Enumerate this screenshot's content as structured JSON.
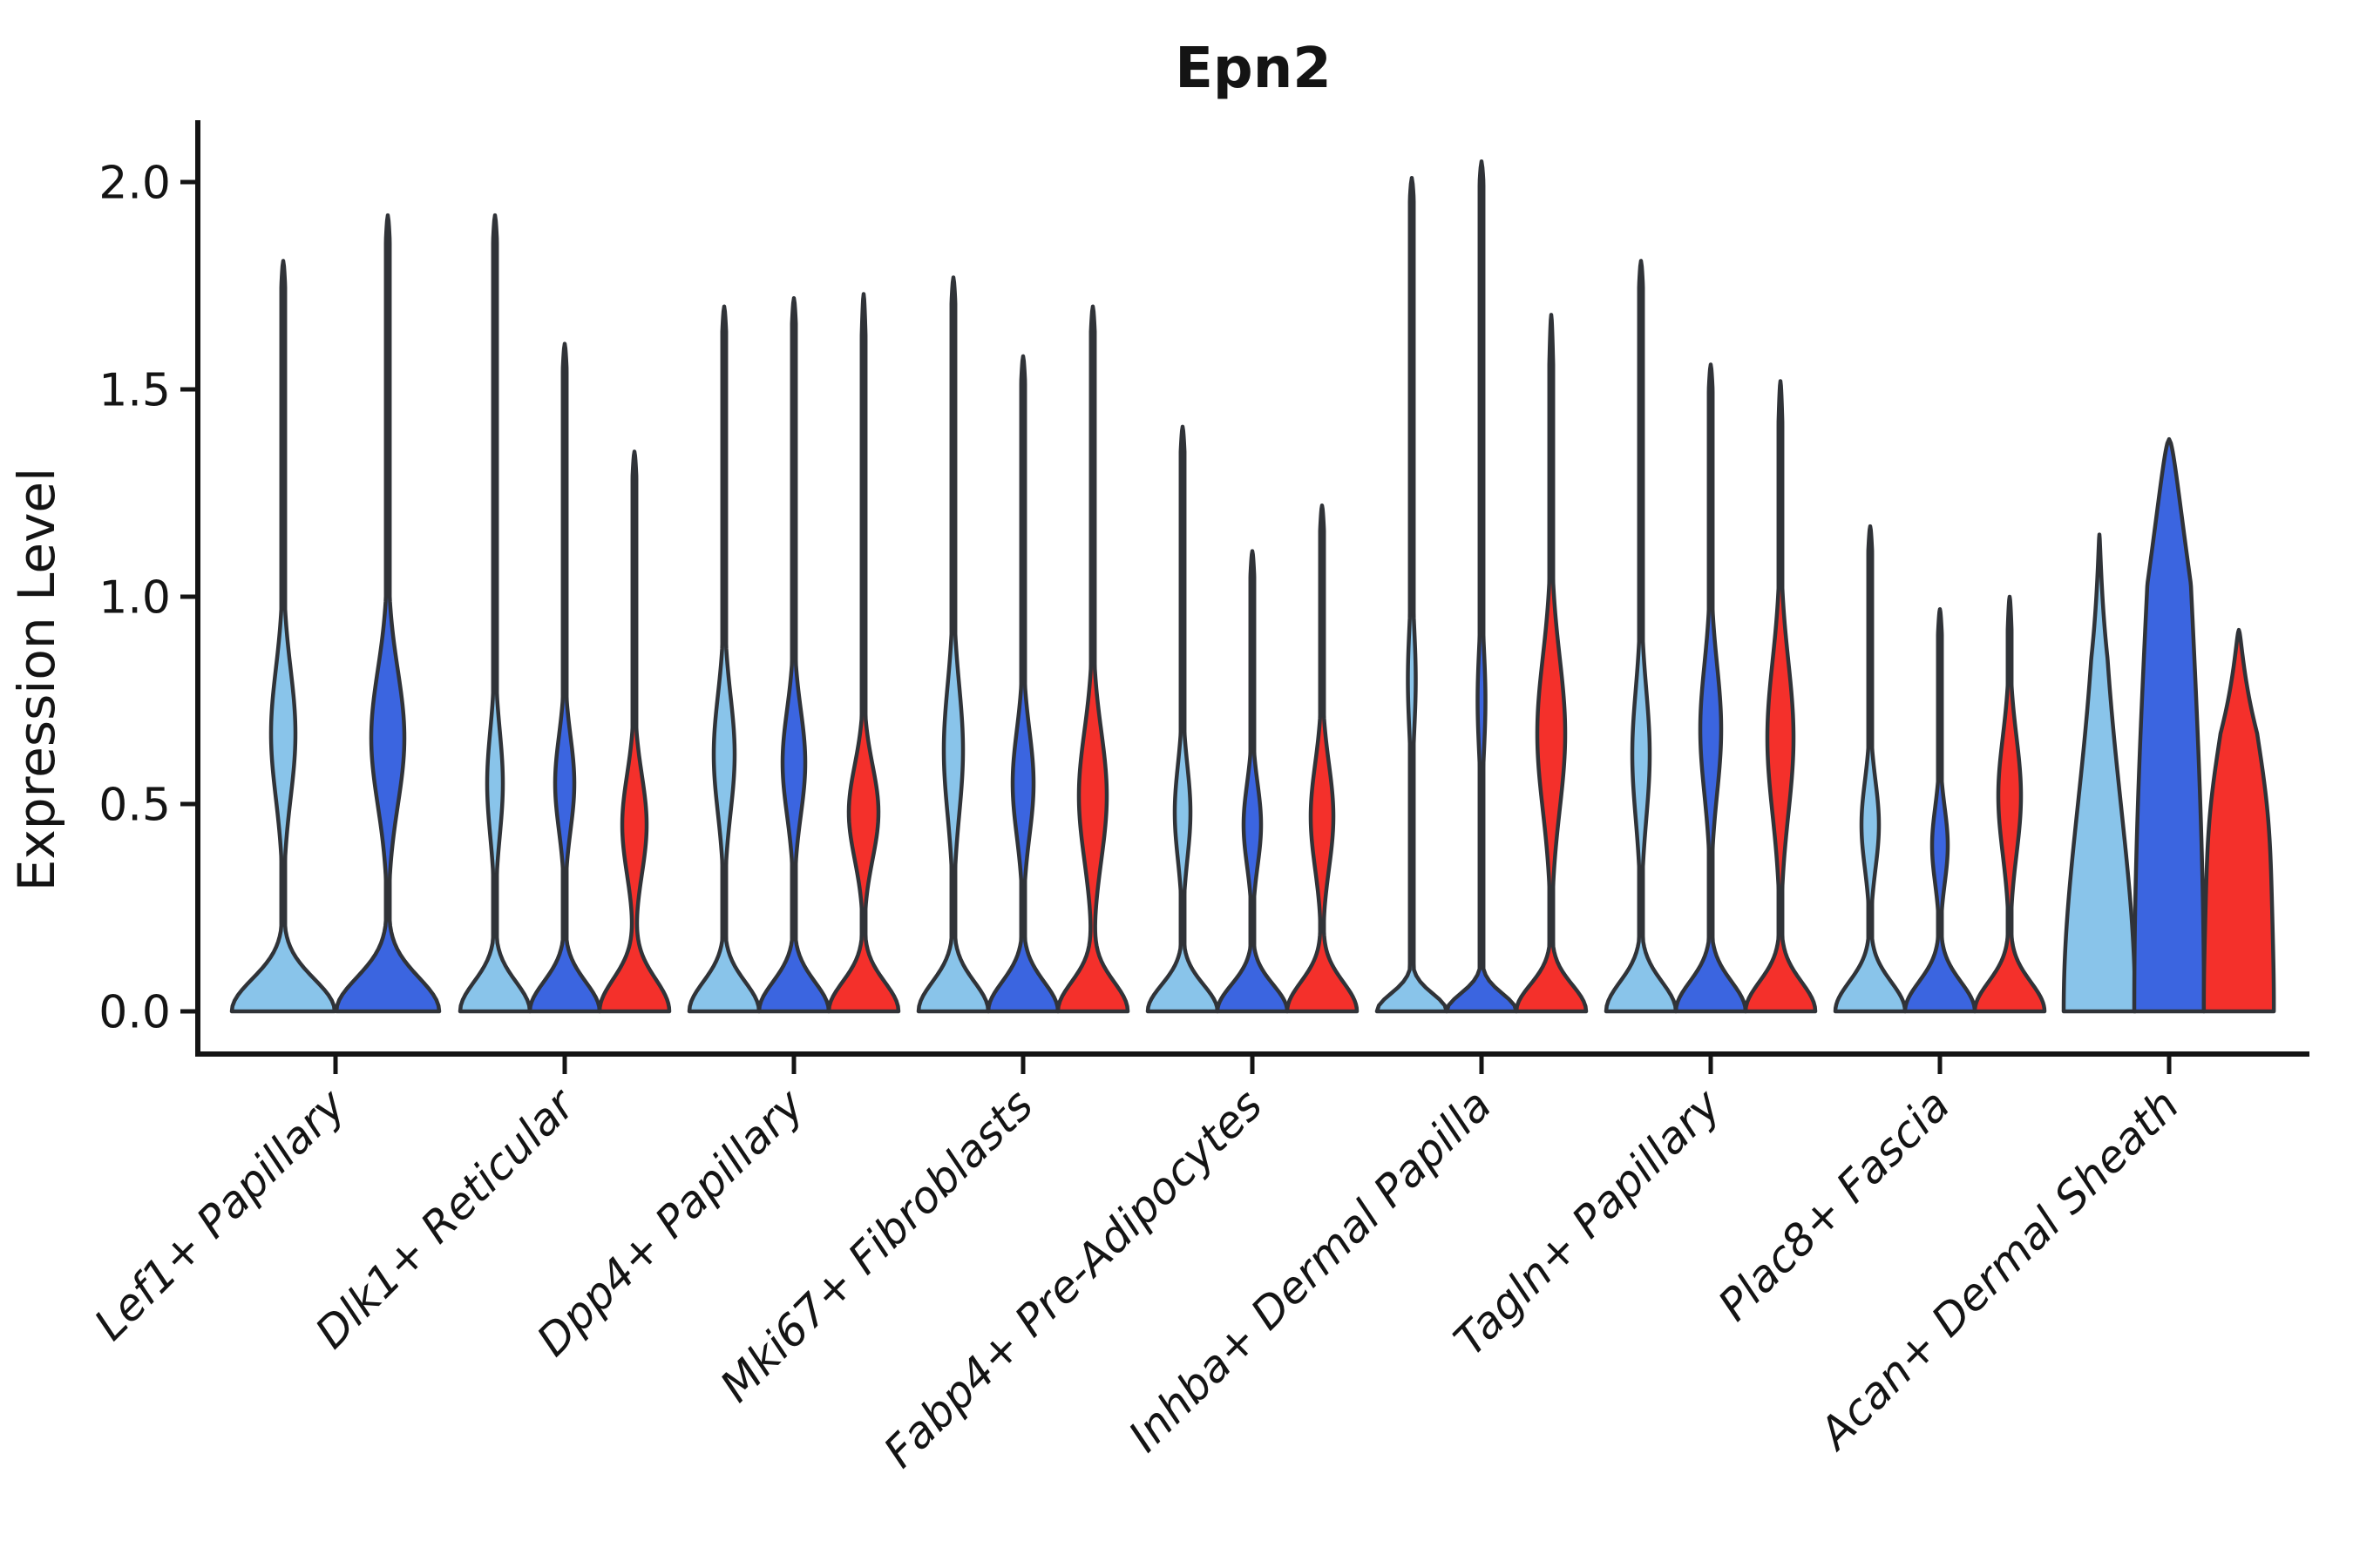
{
  "title": "Epn2",
  "ylabel": "Expression Level",
  "chart_data": {
    "type": "violin",
    "title": "Epn2",
    "xlabel": "",
    "ylabel": "Expression Level",
    "yticks": [
      "0.0",
      "0.5",
      "1.0",
      "1.5",
      "2.0"
    ],
    "ytick_values": [
      0.0,
      0.5,
      1.0,
      1.5,
      2.0
    ],
    "ylim": [
      -0.1,
      2.15
    ],
    "grid": false,
    "legend": "none",
    "categories": [
      "Lef1+ Papillary",
      "Dlk1+ Reticular",
      "Dpp4+ Papillary",
      "Mki67+ Fibroblasts",
      "Fabp4+ Pre-Adipocytes",
      "Inhba+ Dermal Papilla",
      "Tagln+ Papillary",
      "Plac8+ Fascia",
      "Acan+ Dermal Sheath"
    ],
    "colors": {
      "light_blue": "#89C4EA",
      "dark_blue": "#3B65E0",
      "red": "#F4302B",
      "outline": "#303338",
      "axis": "#141414"
    },
    "groups": [
      {
        "label": "Lef1+ Papillary",
        "violins": [
          {
            "color": "light_blue",
            "top": 1.81,
            "base_hw": 59,
            "base_sigma": 0.11,
            "bulge_hw": 14,
            "bulge_c": 0.67,
            "bulge_sigma": 0.22,
            "tip": 0.06
          },
          {
            "color": "dark_blue",
            "top": 1.92,
            "base_hw": 59,
            "base_sigma": 0.115,
            "bulge_hw": 19,
            "bulge_c": 0.66,
            "bulge_sigma": 0.23,
            "tip": 0.06
          }
        ]
      },
      {
        "label": "Dlk1+ Reticular",
        "violins": [
          {
            "color": "light_blue",
            "top": 1.92,
            "base_hw": 40,
            "base_sigma": 0.1,
            "bulge_hw": 9,
            "bulge_c": 0.55,
            "bulge_sigma": 0.18,
            "tip": 0.06
          },
          {
            "color": "dark_blue",
            "top": 1.61,
            "base_hw": 40,
            "base_sigma": 0.1,
            "bulge_hw": 11,
            "bulge_c": 0.55,
            "bulge_sigma": 0.16,
            "tip": 0.06
          },
          {
            "color": "red",
            "top": 1.35,
            "base_hw": 40,
            "base_sigma": 0.11,
            "bulge_hw": 14,
            "bulge_c": 0.45,
            "bulge_sigma": 0.17,
            "tip": 0.06
          }
        ]
      },
      {
        "label": "Dpp4+ Papillary",
        "violins": [
          {
            "color": "light_blue",
            "top": 1.7,
            "base_hw": 40,
            "base_sigma": 0.1,
            "bulge_hw": 12,
            "bulge_c": 0.62,
            "bulge_sigma": 0.2,
            "tip": 0.06
          },
          {
            "color": "dark_blue",
            "top": 1.72,
            "base_hw": 40,
            "base_sigma": 0.1,
            "bulge_hw": 13,
            "bulge_c": 0.6,
            "bulge_sigma": 0.18,
            "tip": 0.06
          },
          {
            "color": "red",
            "top": 1.73,
            "base_hw": 40,
            "base_sigma": 0.1,
            "bulge_hw": 17,
            "bulge_c": 0.48,
            "bulge_sigma": 0.16,
            "tip": 0.1
          }
        ]
      },
      {
        "label": "Mki67+ Fibroblasts",
        "violins": [
          {
            "color": "light_blue",
            "top": 1.77,
            "base_hw": 40,
            "base_sigma": 0.1,
            "bulge_hw": 11,
            "bulge_c": 0.63,
            "bulge_sigma": 0.22,
            "tip": 0.06
          },
          {
            "color": "dark_blue",
            "top": 1.58,
            "base_hw": 40,
            "base_sigma": 0.1,
            "bulge_hw": 12,
            "bulge_c": 0.55,
            "bulge_sigma": 0.18,
            "tip": 0.06
          },
          {
            "color": "red",
            "top": 1.7,
            "base_hw": 40,
            "base_sigma": 0.1,
            "bulge_hw": 16,
            "bulge_c": 0.52,
            "bulge_sigma": 0.22,
            "tip": 0.06
          }
        ]
      },
      {
        "label": "Fabp4+ Pre-Adipocytes",
        "violins": [
          {
            "color": "light_blue",
            "top": 1.41,
            "base_hw": 40,
            "base_sigma": 0.09,
            "bulge_hw": 9,
            "bulge_c": 0.48,
            "bulge_sigma": 0.16,
            "tip": 0.06
          },
          {
            "color": "dark_blue",
            "top": 1.11,
            "base_hw": 40,
            "base_sigma": 0.09,
            "bulge_hw": 10,
            "bulge_c": 0.45,
            "bulge_sigma": 0.14,
            "tip": 0.06
          },
          {
            "color": "red",
            "top": 1.22,
            "base_hw": 40,
            "base_sigma": 0.1,
            "bulge_hw": 13,
            "bulge_c": 0.47,
            "bulge_sigma": 0.18,
            "tip": 0.06
          }
        ]
      },
      {
        "label": "Inhba+ Dermal Papilla",
        "violins": [
          {
            "color": "light_blue",
            "top": 2.01,
            "base_hw": 40,
            "base_sigma": 0.06,
            "bulge_hw": 4.5,
            "bulge_c": 0.8,
            "bulge_sigma": 0.18,
            "tip": 0.05
          },
          {
            "color": "dark_blue",
            "top": 2.05,
            "base_hw": 40,
            "base_sigma": 0.06,
            "bulge_hw": 4.5,
            "bulge_c": 0.75,
            "bulge_sigma": 0.18,
            "tip": 0.05
          },
          {
            "color": "red",
            "top": 1.68,
            "base_hw": 40,
            "base_sigma": 0.09,
            "bulge_hw": 16,
            "bulge_c": 0.67,
            "bulge_sigma": 0.26,
            "tip": 0.12
          }
        ]
      },
      {
        "label": "Tagln+ Papillary",
        "violins": [
          {
            "color": "light_blue",
            "top": 1.81,
            "base_hw": 40,
            "base_sigma": 0.1,
            "bulge_hw": 10,
            "bulge_c": 0.62,
            "bulge_sigma": 0.22,
            "tip": 0.06
          },
          {
            "color": "dark_blue",
            "top": 1.56,
            "base_hw": 40,
            "base_sigma": 0.1,
            "bulge_hw": 12,
            "bulge_c": 0.68,
            "bulge_sigma": 0.22,
            "tip": 0.06
          },
          {
            "color": "red",
            "top": 1.52,
            "base_hw": 40,
            "base_sigma": 0.1,
            "bulge_hw": 15,
            "bulge_c": 0.66,
            "bulge_sigma": 0.26,
            "tip": 0.1
          }
        ]
      },
      {
        "label": "Plac8+ Fascia",
        "violins": [
          {
            "color": "light_blue",
            "top": 1.17,
            "base_hw": 40,
            "base_sigma": 0.1,
            "bulge_hw": 10,
            "bulge_c": 0.45,
            "bulge_sigma": 0.15,
            "tip": 0.06
          },
          {
            "color": "dark_blue",
            "top": 0.97,
            "base_hw": 40,
            "base_sigma": 0.1,
            "bulge_hw": 9,
            "bulge_c": 0.4,
            "bulge_sigma": 0.13,
            "tip": 0.06
          },
          {
            "color": "red",
            "top": 1.0,
            "base_hw": 40,
            "base_sigma": 0.1,
            "bulge_hw": 13,
            "bulge_c": 0.52,
            "bulge_sigma": 0.2,
            "tip": 0.08
          }
        ]
      },
      {
        "label": "Acan+ Dermal Sheath",
        "violins": [
          {
            "color": "light_blue",
            "top": 1.15,
            "base_hw": 41,
            "base_sigma": 0.7,
            "bulge_hw": 0,
            "bulge_c": 0.0,
            "bulge_sigma": 1.0,
            "tip": 0.3
          },
          {
            "color": "dark_blue",
            "top": 1.38,
            "base_hw": 40,
            "base_sigma": 1.5,
            "bulge_hw": 0,
            "bulge_c": 0.0,
            "bulge_sigma": 1.0,
            "tip": 0.35
          },
          {
            "color": "red",
            "top": 0.92,
            "base_hw": 40,
            "base_sigma": 0.7,
            "bulge_hw": 8,
            "bulge_c": 0.5,
            "bulge_sigma": 0.25,
            "tip": 0.25
          }
        ]
      }
    ]
  }
}
